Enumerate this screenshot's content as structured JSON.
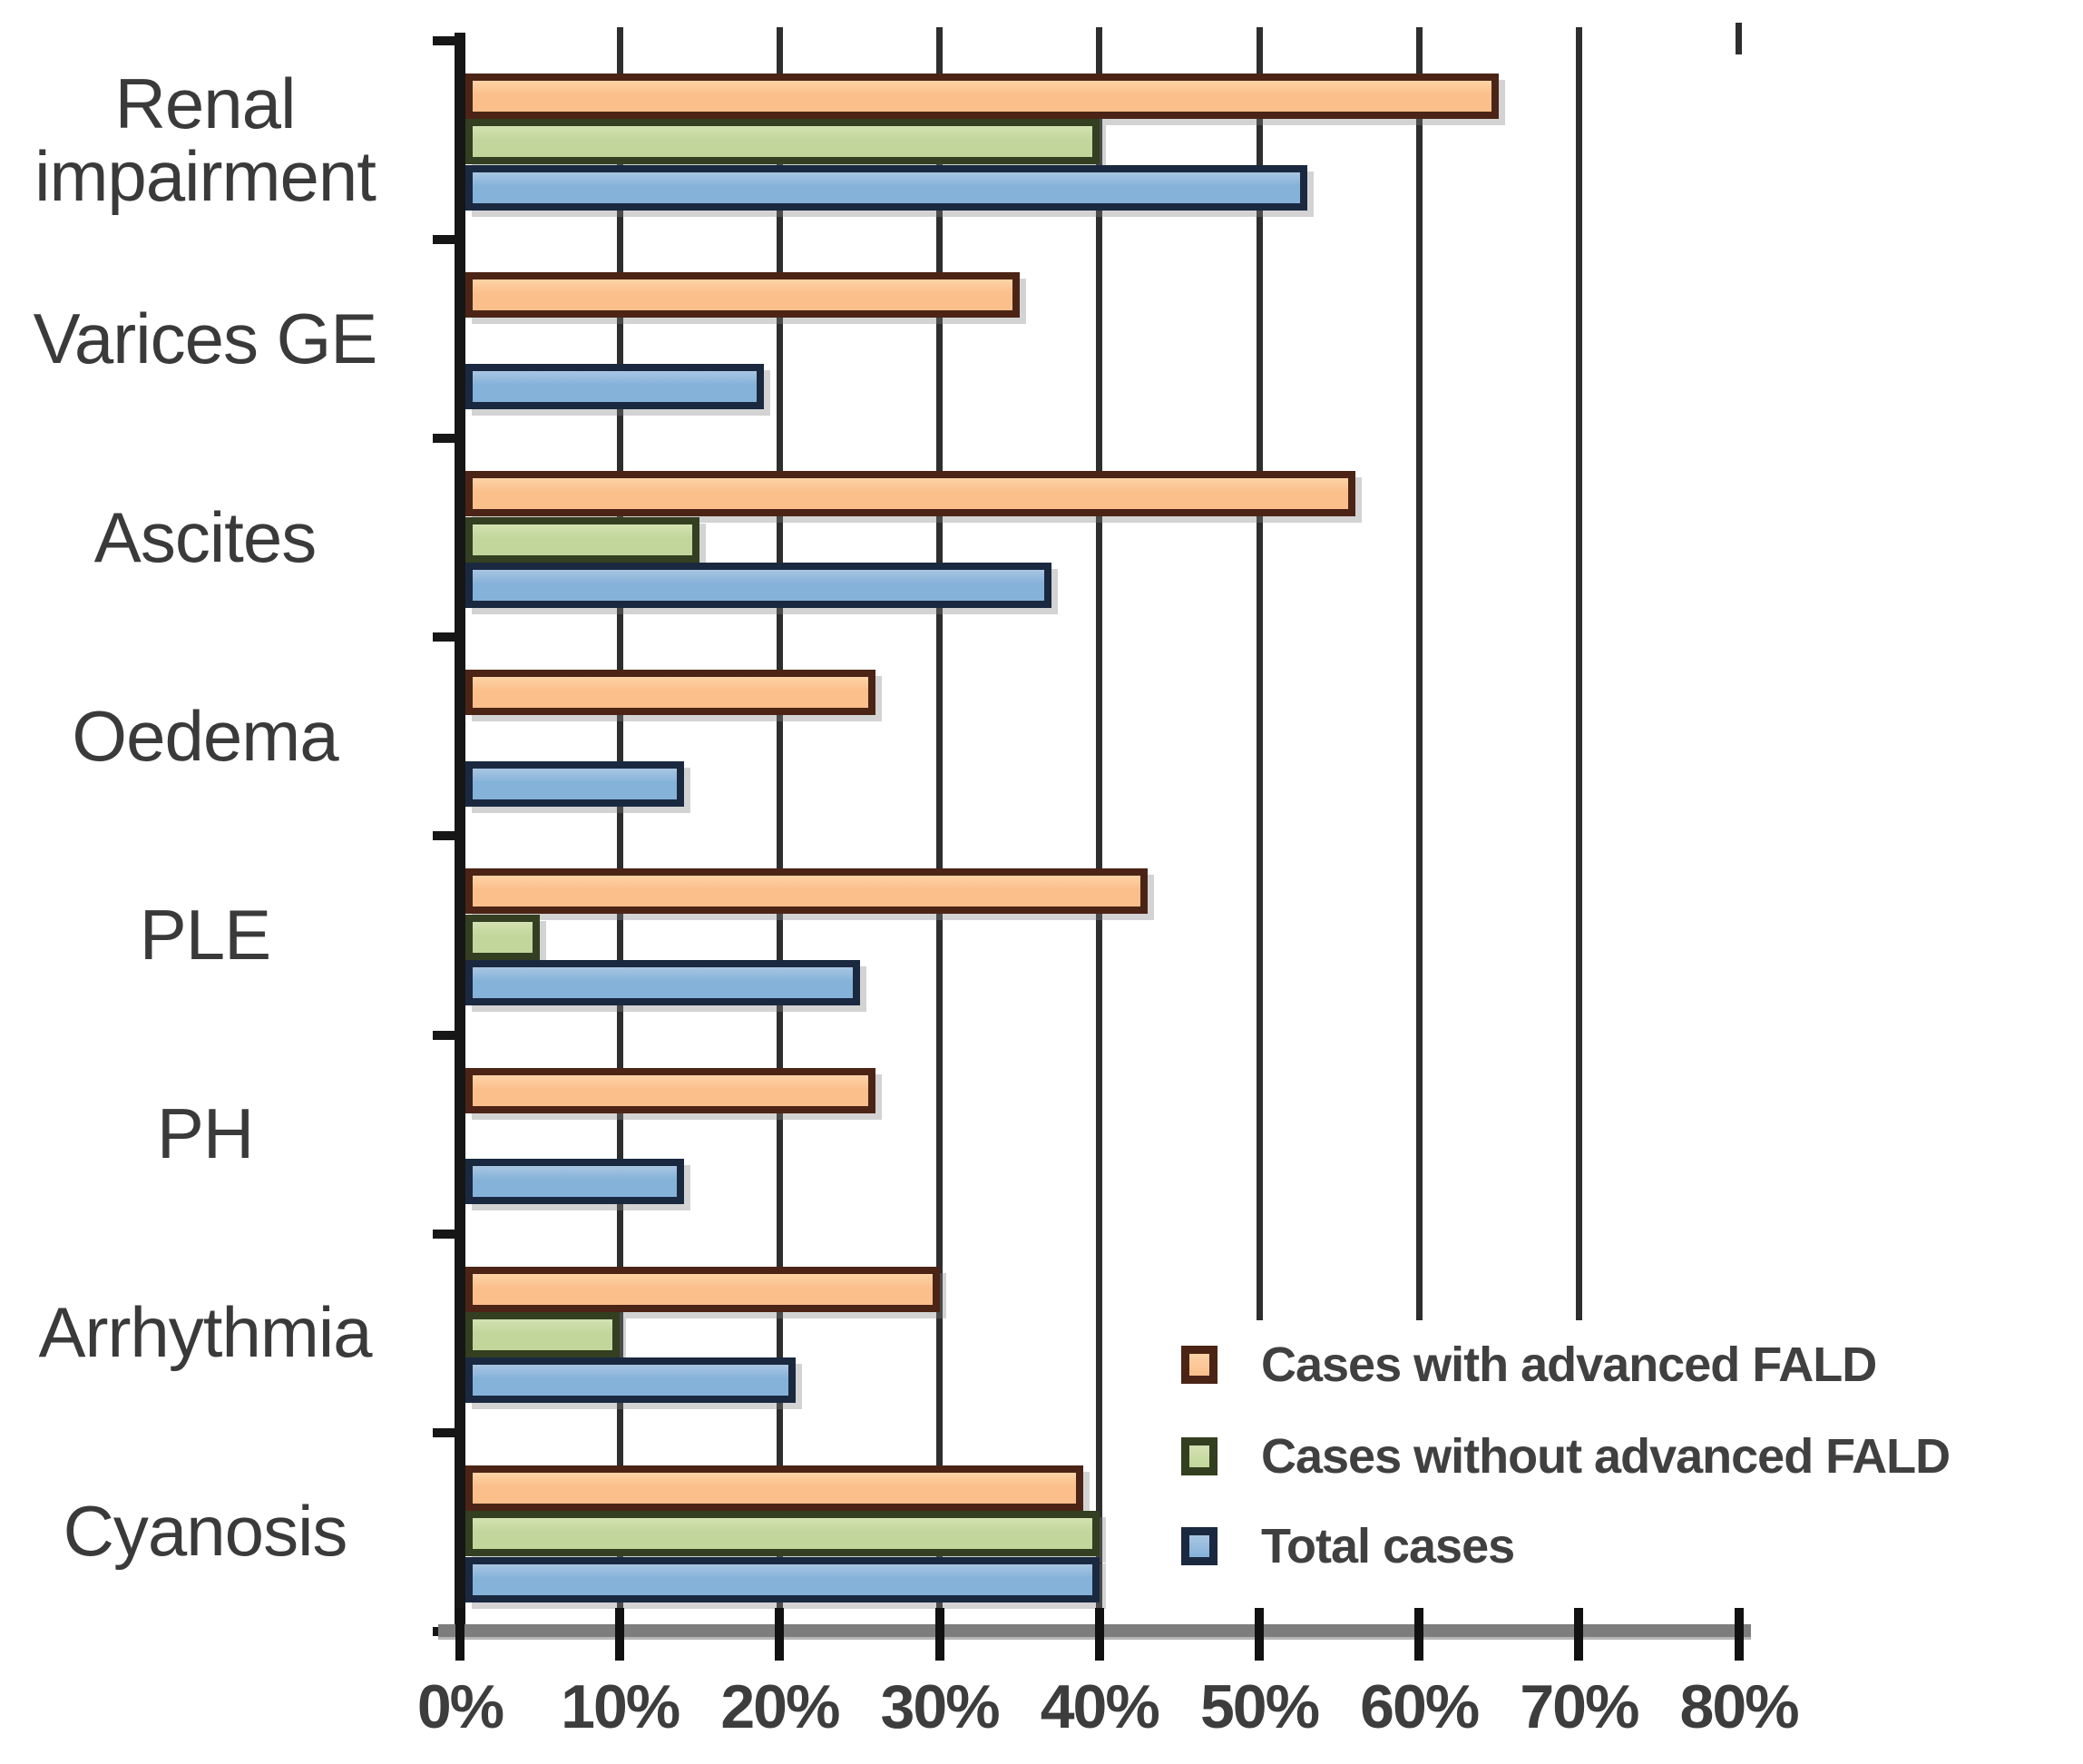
{
  "chart_data": {
    "type": "bar",
    "orientation": "horizontal",
    "title": "",
    "xlabel": "",
    "ylabel": "",
    "xlim": [
      0,
      80
    ],
    "grid": true,
    "legend_position": "bottom-right",
    "categories": [
      "Renal impairment",
      "Varices GE",
      "Ascites",
      "Oedema",
      "PLE",
      "PH",
      "Arrhythmia",
      "Cyanosis"
    ],
    "x_ticks": [
      "0%",
      "10%",
      "20%",
      "30%",
      "40%",
      "50%",
      "60%",
      "70%",
      "80%"
    ],
    "series": [
      {
        "name": "Cases with advanced FALD",
        "fill_color": "#FBBF8B",
        "fill_color_light": "#FDD3A6",
        "border_color": "#4B2416",
        "values": [
          65,
          35,
          56,
          26,
          43,
          26,
          30,
          39
        ]
      },
      {
        "name": "Cases without advanced FALD",
        "fill_color": "#C2D69B",
        "fill_color_light": "#D3E2B2",
        "border_color": "#333F20",
        "values": [
          40,
          0,
          15,
          0,
          5,
          0,
          10,
          40
        ]
      },
      {
        "name": "Total cases",
        "fill_color": "#85B2D9",
        "fill_color_light": "#A9C6E3",
        "border_color": "#1A2940",
        "values": [
          53,
          19,
          37,
          14,
          25,
          14,
          21,
          40
        ]
      }
    ]
  }
}
